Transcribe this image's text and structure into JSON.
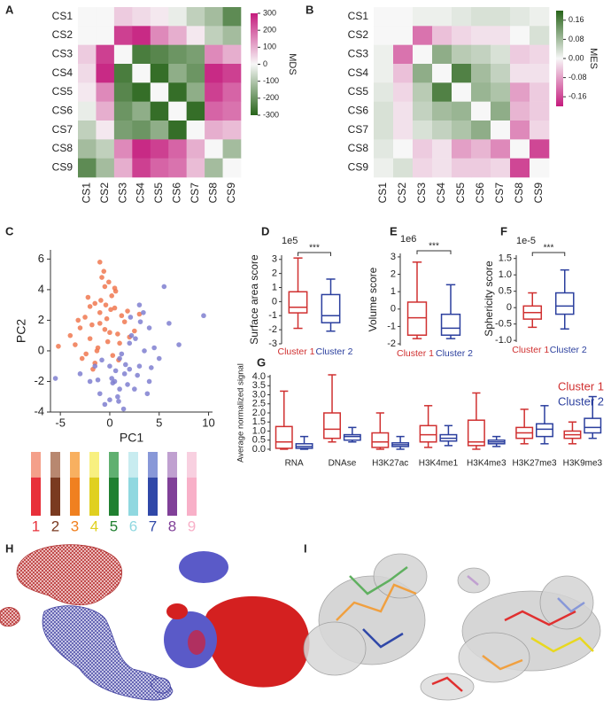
{
  "chart_data": [
    {
      "panel": "A",
      "type": "heatmap",
      "categories": [
        "CS1",
        "CS2",
        "CS3",
        "CS4",
        "CS5",
        "CS6",
        "CS7",
        "CS8",
        "CS9"
      ],
      "values": [
        [
          0,
          0,
          60,
          40,
          20,
          -20,
          -80,
          -120,
          -220
        ],
        [
          0,
          0,
          250,
          280,
          150,
          100,
          20,
          -80,
          -120
        ],
        [
          60,
          250,
          0,
          -250,
          -230,
          -200,
          -180,
          150,
          100
        ],
        [
          40,
          280,
          -250,
          0,
          -280,
          -150,
          -200,
          280,
          250
        ],
        [
          20,
          150,
          -230,
          -280,
          0,
          -280,
          -150,
          250,
          200
        ],
        [
          -20,
          100,
          -200,
          -150,
          -280,
          0,
          -280,
          200,
          180
        ],
        [
          -80,
          20,
          -180,
          -200,
          -150,
          -280,
          0,
          100,
          80
        ],
        [
          -120,
          -80,
          150,
          280,
          250,
          200,
          100,
          0,
          -120
        ],
        [
          -220,
          -120,
          100,
          250,
          200,
          180,
          80,
          -120,
          0
        ]
      ],
      "cmap": [
        "#276419",
        "#f7f7f7",
        "#c51b7d"
      ],
      "zlim": [
        -300,
        300
      ],
      "zticks": [
        300,
        200,
        100,
        0,
        -100,
        -200,
        -300
      ],
      "zlabel": "MDS"
    },
    {
      "panel": "B",
      "type": "heatmap",
      "categories": [
        "CS1",
        "CS2",
        "CS3",
        "CS4",
        "CS5",
        "CS6",
        "CS7",
        "CS8",
        "CS9"
      ],
      "values": [
        [
          0,
          0,
          0.01,
          0.01,
          0.02,
          0.03,
          0.03,
          0.02,
          0.01
        ],
        [
          0,
          0,
          -0.12,
          -0.05,
          -0.03,
          -0.02,
          -0.02,
          0,
          0.03
        ],
        [
          0.01,
          -0.12,
          0,
          0.1,
          0.06,
          0.05,
          0.03,
          -0.04,
          -0.03
        ],
        [
          0.01,
          -0.05,
          0.1,
          0,
          0.16,
          0.08,
          0.05,
          -0.02,
          -0.02
        ],
        [
          0.02,
          -0.03,
          0.06,
          0.16,
          0,
          0.09,
          0.07,
          -0.08,
          -0.04
        ],
        [
          0.03,
          -0.02,
          0.05,
          0.08,
          0.09,
          0,
          0.1,
          -0.06,
          -0.04
        ],
        [
          0.03,
          -0.02,
          0.03,
          0.05,
          0.07,
          0.1,
          0,
          -0.1,
          -0.03
        ],
        [
          0.02,
          0,
          -0.04,
          -0.02,
          -0.08,
          -0.06,
          -0.1,
          0,
          -0.16
        ],
        [
          0.01,
          0.03,
          -0.03,
          -0.02,
          -0.04,
          -0.04,
          -0.03,
          -0.16,
          0
        ]
      ],
      "cmap": [
        "#c51b7d",
        "#f7f7f7",
        "#276419"
      ],
      "zlim": [
        -0.2,
        0.2
      ],
      "zticks": [
        0.16,
        0.08,
        {
          "value": 0,
          "label": "0.00"
        },
        -0.08,
        -0.16
      ],
      "zlabel": "MES"
    },
    {
      "panel": "C",
      "type": "scatter",
      "xlabel": "PC1",
      "ylabel": "PC2",
      "xlim": [
        -6,
        10.4
      ],
      "ylim": [
        -4,
        6.6
      ],
      "xticks": [
        -5,
        0,
        5,
        10
      ],
      "yticks": [
        -4,
        -2,
        0,
        2,
        4,
        6
      ],
      "series": [
        {
          "color": "#f07850",
          "x": [
            -3,
            -2.5,
            -2,
            -1.5,
            -1,
            -0.5,
            0,
            0.5,
            1,
            1.5,
            -2.8,
            -2.2,
            -1.8,
            -1.2,
            -0.8,
            -0.3,
            0.2,
            0.8,
            1.2,
            2,
            -3.5,
            -1,
            -0.2,
            0.6,
            -1.5,
            -2,
            -0.5,
            0.3,
            1.8,
            2.5,
            -4,
            -3.2,
            -1.7,
            -0.9,
            0.1,
            -0.6,
            -1.3,
            0.9,
            -2.4,
            -0.1,
            -0.4,
            3,
            -1,
            0.5,
            -5.2
          ],
          "y": [
            1.5,
            2.2,
            0.8,
            3.1,
            2.5,
            4.2,
            1.2,
            2.8,
            0.5,
            1.9,
            -0.5,
            3.5,
            1.7,
            0.2,
            4.8,
            2.1,
            3.6,
            1.1,
            2.3,
            0.9,
            0.4,
            5.8,
            0.6,
            3.9,
            -0.8,
            2.9,
            1.4,
            -0.3,
            2.6,
            1.3,
            1.0,
            2.0,
            -1.2,
            3.3,
            2.7,
            5.2,
            0.0,
            -0.6,
            -0.2,
            4.5,
            3.0,
            2.4,
            1.8,
            4.1,
            0.3
          ]
        },
        {
          "color": "#7f7fd0",
          "x": [
            0,
            0.5,
            1,
            1.5,
            2,
            2.5,
            3,
            3.5,
            4,
            5,
            -1,
            -0.5,
            0.2,
            0.8,
            1.2,
            1.8,
            2.2,
            2.8,
            3.4,
            4.5,
            -2,
            -1.5,
            0,
            1,
            2,
            3,
            4,
            6,
            7,
            9.5,
            -3,
            -0.8,
            0.6,
            1.4,
            2.6,
            3.8,
            5.5,
            -5.5,
            1.6,
            0.3,
            2.1,
            -1.2,
            4.2,
            0.9,
            3.1
          ],
          "y": [
            -1,
            -2,
            -0.5,
            -1.5,
            0.5,
            -2.5,
            -1,
            0,
            1.5,
            -0.5,
            -2.8,
            -3.5,
            -1.8,
            -3,
            -0.2,
            -2.2,
            1,
            -1.6,
            2.5,
            0.2,
            -2,
            -1,
            -3.2,
            -2.5,
            -1.2,
            3,
            -2,
            1.8,
            0.4,
            2.3,
            -1.5,
            -0.6,
            -1.3,
            -3.8,
            0.8,
            -2.8,
            4.2,
            -1.8,
            -0.9,
            -2.1,
            2.2,
            -1.9,
            -1.1,
            -3.3,
            1.9
          ]
        }
      ]
    },
    {
      "type": "legend",
      "items": [
        {
          "label": "1",
          "colors": [
            "#f4a08a",
            "#e8303a"
          ]
        },
        {
          "label": "2",
          "colors": [
            "#b88870",
            "#7a3a20"
          ]
        },
        {
          "label": "3",
          "colors": [
            "#f8b060",
            "#f08020"
          ]
        },
        {
          "label": "4",
          "colors": [
            "#f8f080",
            "#e0d020"
          ]
        },
        {
          "label": "5",
          "colors": [
            "#60b070",
            "#208030"
          ]
        },
        {
          "label": "6",
          "colors": [
            "#c8ecf0",
            "#90d8e0"
          ]
        },
        {
          "label": "7",
          "colors": [
            "#8898d8",
            "#3048a8"
          ]
        },
        {
          "label": "8",
          "colors": [
            "#c0a0d0",
            "#804098"
          ]
        },
        {
          "label": "9",
          "colors": [
            "#f8d0e0",
            "#f8b0c8"
          ]
        }
      ]
    },
    {
      "panel": "D",
      "type": "box",
      "ylabel": "Surface area score",
      "scale_label": "1e5",
      "significance": "***",
      "ylim": [
        -3,
        3.3
      ],
      "yticks": [
        -3,
        -2,
        -1,
        0,
        1,
        2,
        3
      ],
      "categories": [
        "Cluster 1",
        "Cluster 2"
      ],
      "colors": [
        "#d03030",
        "#2b3f9e"
      ],
      "boxes": [
        {
          "min": -1.9,
          "q1": -0.8,
          "median": -0.4,
          "q3": 0.7,
          "max": 3.1
        },
        {
          "min": -2.1,
          "q1": -1.5,
          "median": -1.0,
          "q3": 0.5,
          "max": 1.6
        }
      ]
    },
    {
      "panel": "E",
      "type": "box",
      "ylabel": "Volume score",
      "scale_label": "1e6",
      "significance": "***",
      "ylim": [
        -2.1,
        3.2
      ],
      "yticks": [
        -2,
        -1,
        0,
        1,
        2,
        3
      ],
      "categories": [
        "Cluster 1",
        "Cluster 2"
      ],
      "colors": [
        "#d03030",
        "#2b3f9e"
      ],
      "boxes": [
        {
          "min": -1.7,
          "q1": -1.5,
          "median": -0.5,
          "q3": 0.4,
          "max": 2.7
        },
        {
          "min": -1.7,
          "q1": -1.5,
          "median": -1.1,
          "q3": -0.3,
          "max": 1.4
        }
      ]
    },
    {
      "panel": "F",
      "type": "box",
      "ylabel": "Sphericity score",
      "scale_label": "1e-5",
      "significance": "***",
      "ylim": [
        -1.05,
        1.6
      ],
      "yticks": [
        {
          "value": -1,
          "label": "-1.0"
        },
        -0.5,
        0,
        0.5,
        {
          "value": 1,
          "label": "1.0"
        },
        1.5
      ],
      "categories": [
        "Cluster 1",
        "Cluster 2"
      ],
      "colors": [
        "#d03030",
        "#2b3f9e"
      ],
      "boxes": [
        {
          "min": -0.6,
          "q1": -0.35,
          "median": -0.15,
          "q3": 0.05,
          "max": 0.45
        },
        {
          "min": -0.65,
          "q1": -0.2,
          "median": 0.05,
          "q3": 0.45,
          "max": 1.15
        }
      ]
    },
    {
      "panel": "G",
      "type": "box",
      "ylabel": "Average normalized signal",
      "ylim": [
        -0.1,
        4.1
      ],
      "yticks": [
        {
          "value": 0,
          "label": "0.0"
        },
        0.5,
        {
          "value": 1,
          "label": "1.0"
        },
        1.5,
        {
          "value": 2,
          "label": "2.0"
        },
        2.5,
        {
          "value": 3,
          "label": "3.0"
        },
        3.5,
        {
          "value": 4,
          "label": "4.0"
        }
      ],
      "categories": [
        "RNA",
        "DNAse",
        "H3K27ac",
        "H3K4me1",
        "H3K4me3",
        "H3K27me3",
        "H3K9me3"
      ],
      "series": [
        {
          "name": "Cluster 1",
          "color": "#d03030",
          "boxes": [
            {
              "min": 0,
              "q1": 0.05,
              "median": 0.4,
              "q3": 1.25,
              "max": 3.2
            },
            {
              "min": 0.4,
              "q1": 0.6,
              "median": 1.1,
              "q3": 2.0,
              "max": 4.1
            },
            {
              "min": 0,
              "q1": 0.1,
              "median": 0.4,
              "q3": 0.9,
              "max": 2.0
            },
            {
              "min": 0.1,
              "q1": 0.4,
              "median": 0.8,
              "q3": 1.3,
              "max": 2.4
            },
            {
              "min": 0,
              "q1": 0.2,
              "median": 0.4,
              "q3": 1.6,
              "max": 3.1
            },
            {
              "min": 0.3,
              "q1": 0.6,
              "median": 0.9,
              "q3": 1.2,
              "max": 2.2
            },
            {
              "min": 0.3,
              "q1": 0.6,
              "median": 0.8,
              "q3": 1.0,
              "max": 1.5
            }
          ]
        },
        {
          "name": "Cluster 2",
          "color": "#2b3f9e",
          "boxes": [
            {
              "min": 0,
              "q1": 0.05,
              "median": 0.15,
              "q3": 0.3,
              "max": 0.7
            },
            {
              "min": 0.4,
              "q1": 0.5,
              "median": 0.7,
              "q3": 0.8,
              "max": 1.2
            },
            {
              "min": 0,
              "q1": 0.15,
              "median": 0.25,
              "q3": 0.35,
              "max": 0.7
            },
            {
              "min": 0.2,
              "q1": 0.45,
              "median": 0.6,
              "q3": 0.8,
              "max": 1.3
            },
            {
              "min": 0.15,
              "q1": 0.3,
              "median": 0.4,
              "q3": 0.5,
              "max": 0.7
            },
            {
              "min": 0.3,
              "q1": 0.7,
              "median": 1.1,
              "q3": 1.4,
              "max": 2.4
            },
            {
              "min": 0.6,
              "q1": 0.9,
              "median": 1.2,
              "q3": 1.7,
              "max": 2.9
            }
          ]
        }
      ]
    }
  ],
  "images": [
    {
      "panel": "H"
    },
    {
      "panel": "I"
    }
  ]
}
